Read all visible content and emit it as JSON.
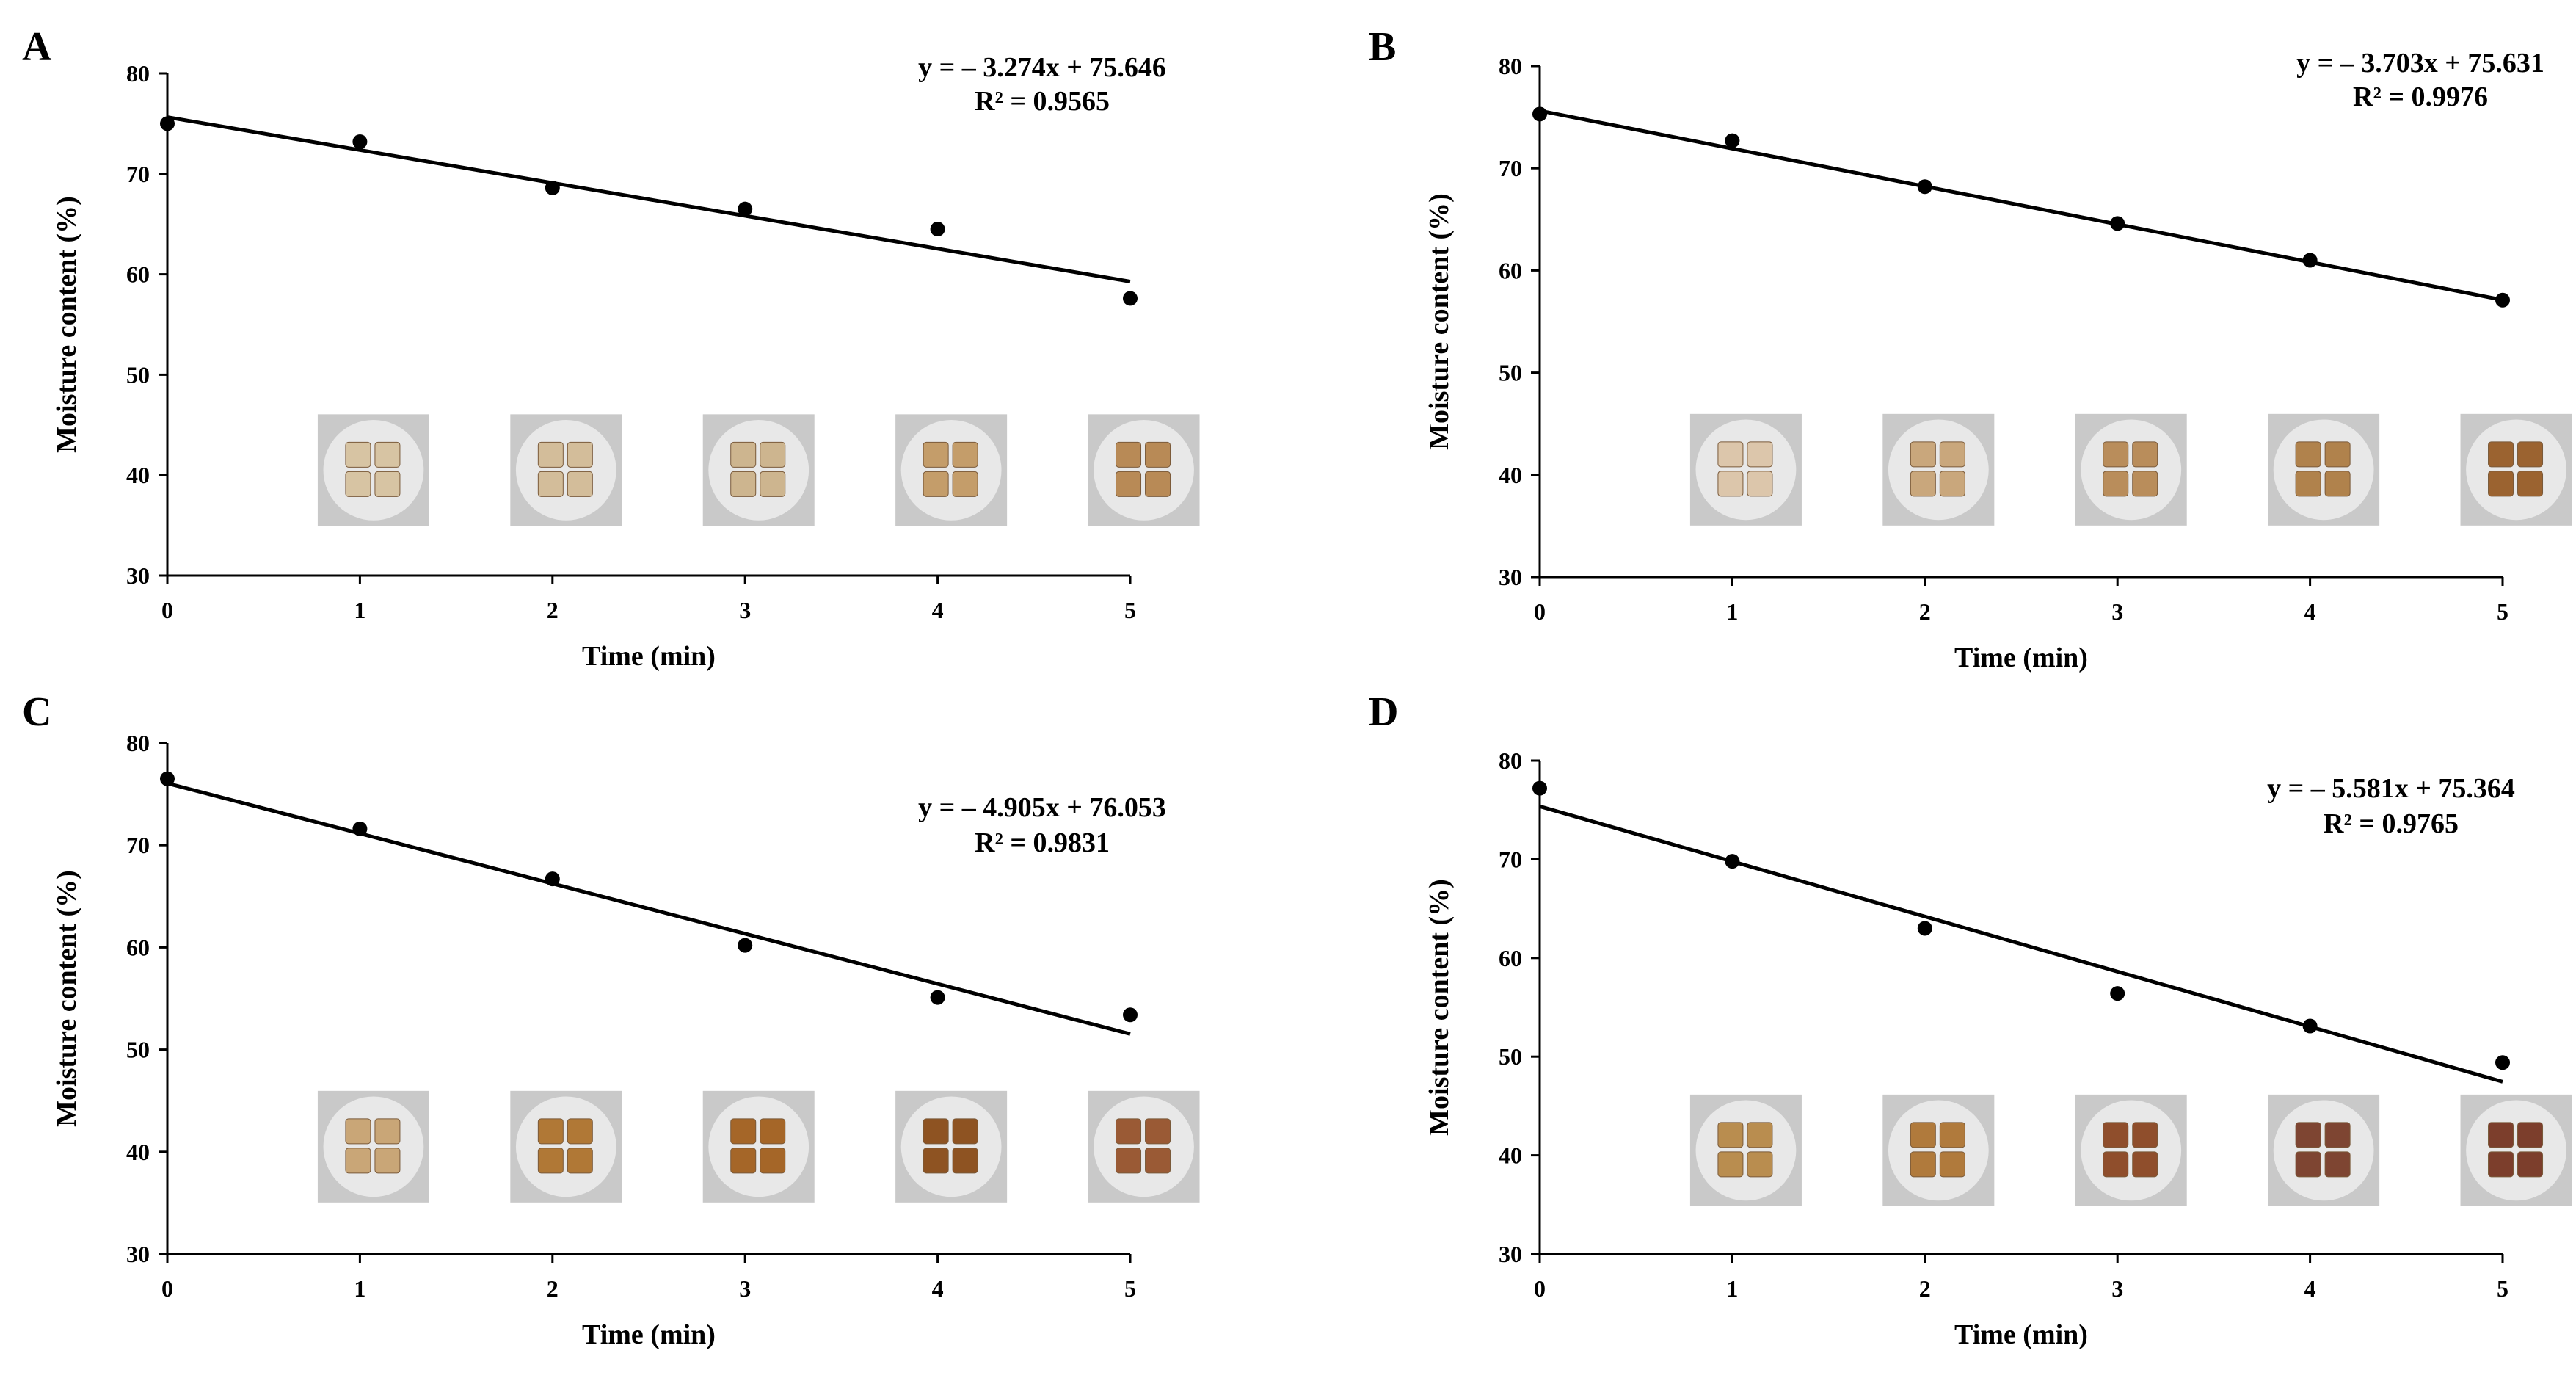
{
  "figure": {
    "panels": [
      "A",
      "B",
      "C",
      "D"
    ],
    "colors": {
      "background": "#ffffff",
      "axis": "#000000",
      "points": "#000000",
      "trend_line": "#000000",
      "photo_background": "#c9c9c9",
      "plate": "#e8e8e8"
    }
  },
  "chart_data": [
    {
      "panel_label": "A",
      "type": "scatter",
      "x": [
        0,
        1,
        2,
        3,
        4,
        5
      ],
      "y": [
        75.0,
        73.2,
        68.6,
        66.5,
        64.5,
        57.6
      ],
      "xlabel": "Time (min)",
      "ylabel": "Moisture content (%)",
      "xlim": [
        0,
        5
      ],
      "ylim": [
        30,
        80
      ],
      "xticks": [
        0,
        1,
        2,
        3,
        4,
        5
      ],
      "yticks": [
        30,
        40,
        50,
        60,
        70,
        80
      ],
      "trendline": {
        "slope": -3.274,
        "intercept": 75.646,
        "x_range": [
          0,
          5
        ]
      },
      "equation": "y = – 3.274x + 75.646",
      "r2": "R² = 0.9565",
      "sample_photos": {
        "count": 5,
        "colors": [
          "#d7c4a3",
          "#d3bd9a",
          "#cdb58f",
          "#c49d6a",
          "#b88a56"
        ]
      }
    },
    {
      "panel_label": "B",
      "type": "scatter",
      "x": [
        0,
        1,
        2,
        3,
        4,
        5
      ],
      "y": [
        75.3,
        72.7,
        68.2,
        64.6,
        61.0,
        57.1
      ],
      "xlabel": "Time (min)",
      "ylabel": "Moisture content (%)",
      "xlim": [
        0,
        5
      ],
      "ylim": [
        30,
        80
      ],
      "xticks": [
        0,
        1,
        2,
        3,
        4,
        5
      ],
      "yticks": [
        30,
        40,
        50,
        60,
        70,
        80
      ],
      "trendline": {
        "slope": -3.703,
        "intercept": 75.631,
        "x_range": [
          0,
          5
        ]
      },
      "equation": "y = – 3.703x + 75.631",
      "r2": "R² = 0.9976",
      "sample_photos": {
        "count": 5,
        "colors": [
          "#dcc6ab",
          "#c9a77c",
          "#b98d5b",
          "#b0824c",
          "#9b6330"
        ]
      }
    },
    {
      "panel_label": "C",
      "type": "scatter",
      "x": [
        0,
        1,
        2,
        3,
        4,
        5
      ],
      "y": [
        76.5,
        71.6,
        66.7,
        60.2,
        55.1,
        53.4
      ],
      "xlabel": "Time (min)",
      "ylabel": "Moisture content (%)",
      "xlim": [
        0,
        5
      ],
      "ylim": [
        30,
        80
      ],
      "xticks": [
        0,
        1,
        2,
        3,
        4,
        5
      ],
      "yticks": [
        30,
        40,
        50,
        60,
        70,
        80
      ],
      "trendline": {
        "slope": -4.905,
        "intercept": 76.053,
        "x_range": [
          0,
          5
        ]
      },
      "equation": "y = – 4.905x + 76.053",
      "r2": "R² = 0.9831",
      "sample_photos": {
        "count": 5,
        "colors": [
          "#c9a677",
          "#b07836",
          "#a56628",
          "#8e5322",
          "#9a5a35"
        ]
      }
    },
    {
      "panel_label": "D",
      "type": "scatter",
      "x": [
        0,
        1,
        2,
        3,
        4,
        5
      ],
      "y": [
        77.2,
        69.8,
        63.0,
        56.4,
        53.1,
        49.4
      ],
      "xlabel": "Time (min)",
      "ylabel": "Moisture content (%)",
      "xlim": [
        0,
        5
      ],
      "ylim": [
        30,
        80
      ],
      "xticks": [
        0,
        1,
        2,
        3,
        4,
        5
      ],
      "yticks": [
        30,
        40,
        50,
        60,
        70,
        80
      ],
      "trendline": {
        "slope": -5.581,
        "intercept": 75.364,
        "x_range": [
          0,
          5
        ]
      },
      "equation": "y = – 5.581x + 75.364",
      "r2": "R² = 0.9765",
      "sample_photos": {
        "count": 5,
        "colors": [
          "#b98d4f",
          "#b07a3c",
          "#8f4e2c",
          "#7e4532",
          "#7c3e2c"
        ]
      }
    }
  ]
}
